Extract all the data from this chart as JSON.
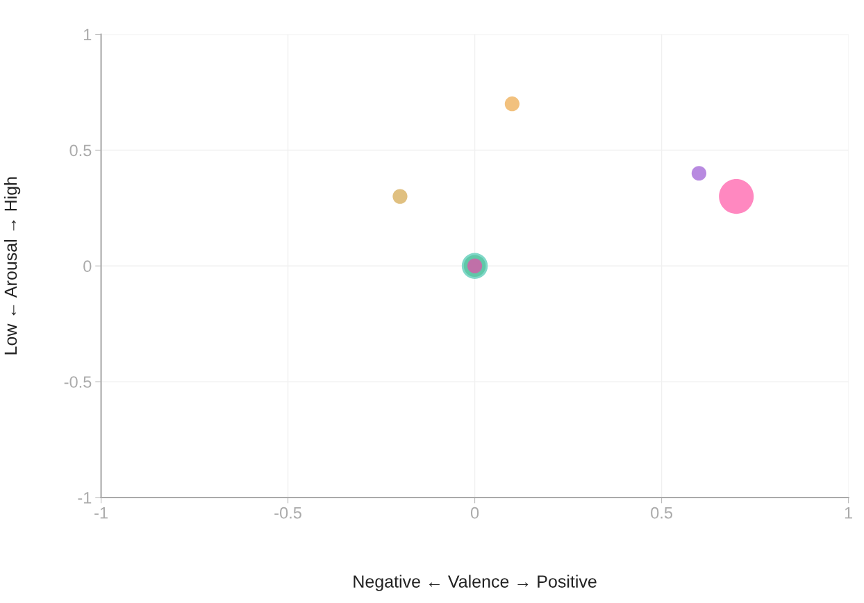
{
  "chart_data": {
    "type": "bubble",
    "xlabel": "Negative ← Valence → Positive",
    "ylabel": "Low ← Arousal → High",
    "xlim": [
      -1,
      1
    ],
    "ylim": [
      -1,
      1
    ],
    "xticks": [
      -1,
      -0.5,
      0,
      0.5,
      1
    ],
    "yticks": [
      -1,
      -0.5,
      0,
      0.5,
      1
    ],
    "grid": true,
    "series": [
      {
        "color": "#f2c17e",
        "x": [
          0.1
        ],
        "values": [
          0.7
        ],
        "sizes": [
          0.18
        ]
      },
      {
        "color": "#e0c080",
        "x": [
          -0.2
        ],
        "values": [
          0.3
        ],
        "sizes": [
          0.18
        ]
      },
      {
        "color": "#b88ae0",
        "x": [
          0.6
        ],
        "values": [
          0.4
        ],
        "sizes": [
          0.18
        ]
      },
      {
        "color": "#ff88c0",
        "x": [
          0.7
        ],
        "values": [
          0.3
        ],
        "sizes": [
          1
        ]
      },
      {
        "color": "#80d8c8",
        "x": [
          0
        ],
        "values": [
          0
        ],
        "sizes": [
          0.56
        ]
      },
      {
        "color": "#60c8a8",
        "x": [
          0
        ],
        "values": [
          0
        ],
        "sizes": [
          0.4
        ]
      },
      {
        "color": "#c070a8",
        "x": [
          0
        ],
        "values": [
          0
        ],
        "sizes": [
          0.18
        ]
      }
    ]
  }
}
